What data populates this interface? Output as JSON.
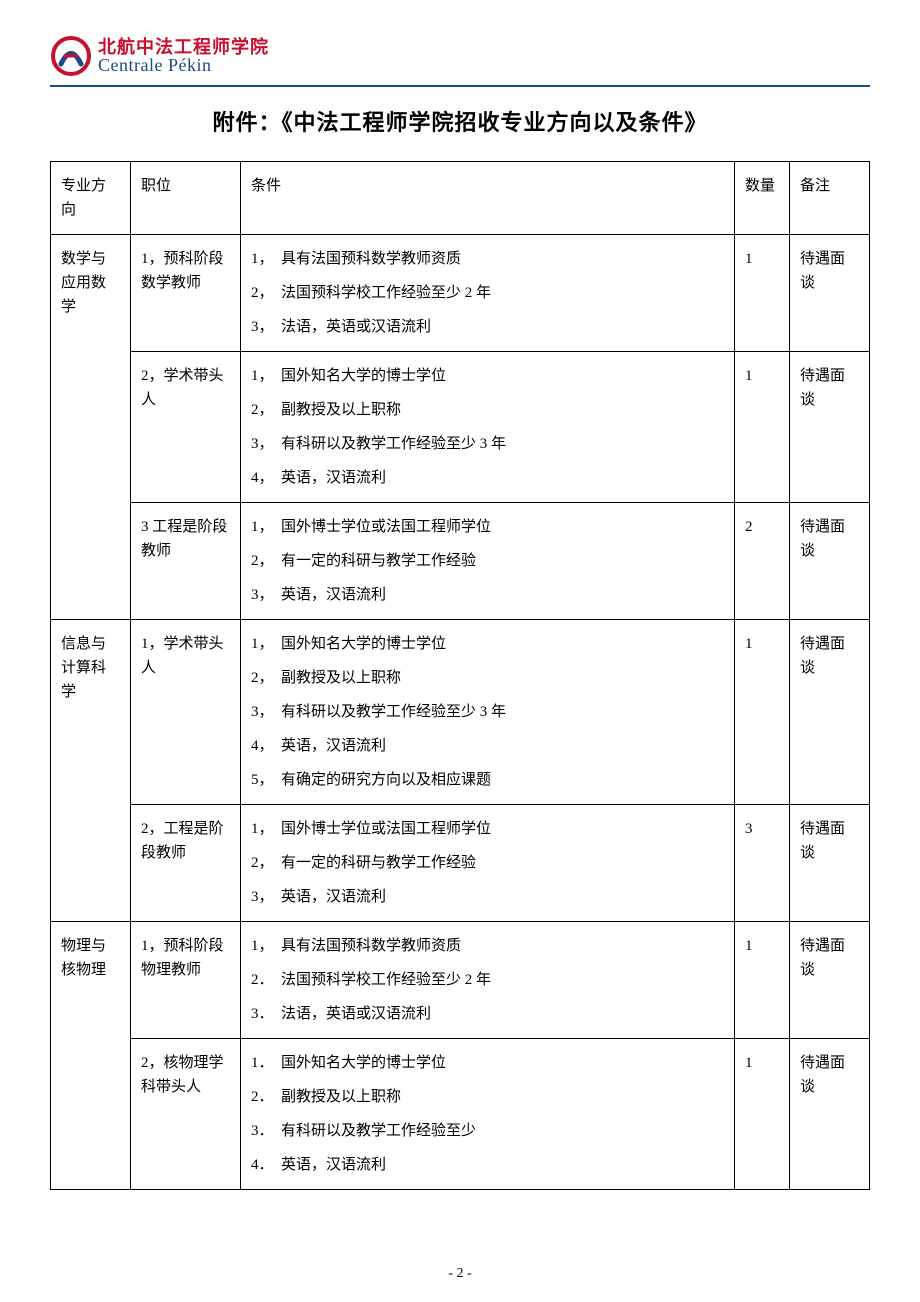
{
  "logo": {
    "cn": "北航中法工程师学院",
    "en": "Centrale Pékin"
  },
  "doc_title": "附件：《中法工程师学院招收专业方向以及条件》",
  "headers": {
    "major": "专业方向",
    "position": "职位",
    "condition": "条件",
    "quantity": "数量",
    "remark": "备注"
  },
  "groups": [
    {
      "major": "数学与应用数学",
      "rows": [
        {
          "position": "1，预科阶段数学教师",
          "conditions": [
            {
              "n": "1，",
              "t": "具有法国预科数学教师资质"
            },
            {
              "n": "2，",
              "t": "法国预科学校工作经验至少 2 年"
            },
            {
              "n": "3，",
              "t": "法语，英语或汉语流利"
            }
          ],
          "qty": "1",
          "remark": "待遇面谈"
        },
        {
          "position": "2，学术带头人",
          "conditions": [
            {
              "n": "1，",
              "t": "国外知名大学的博士学位"
            },
            {
              "n": "2，",
              "t": "副教授及以上职称"
            },
            {
              "n": "3，",
              "t": "有科研以及教学工作经验至少 3 年"
            },
            {
              "n": "4，",
              "t": "英语，汉语流利"
            }
          ],
          "qty": "1",
          "remark": "待遇面谈"
        },
        {
          "position": "3 工程是阶段教师",
          "conditions": [
            {
              "n": "1，",
              "t": "国外博士学位或法国工程师学位"
            },
            {
              "n": "2，",
              "t": "有一定的科研与教学工作经验"
            },
            {
              "n": "3，",
              "t": "英语，汉语流利"
            }
          ],
          "qty": "2",
          "remark": "待遇面谈"
        }
      ]
    },
    {
      "major": "信息与计算科学",
      "rows": [
        {
          "position": "1，学术带头人",
          "conditions": [
            {
              "n": "1，",
              "t": "国外知名大学的博士学位"
            },
            {
              "n": "2，",
              "t": "副教授及以上职称"
            },
            {
              "n": "3，",
              "t": "有科研以及教学工作经验至少 3 年"
            },
            {
              "n": "4，",
              "t": "英语，汉语流利"
            },
            {
              "n": "5，",
              "t": "有确定的研究方向以及相应课题"
            }
          ],
          "qty": "1",
          "remark": "待遇面谈"
        },
        {
          "position": "2，工程是阶段教师",
          "conditions": [
            {
              "n": "1，",
              "t": "国外博士学位或法国工程师学位"
            },
            {
              "n": "2，",
              "t": "有一定的科研与教学工作经验"
            },
            {
              "n": "3，",
              "t": "英语，汉语流利"
            }
          ],
          "qty": "3",
          "remark": "待遇面谈"
        }
      ]
    },
    {
      "major": "物理与核物理",
      "rows": [
        {
          "position": "1，预科阶段物理教师",
          "conditions": [
            {
              "n": "1，",
              "t": "具有法国预科数学教师资质"
            },
            {
              "n": "2．",
              "t": "法国预科学校工作经验至少 2 年"
            },
            {
              "n": "3．",
              "t": "法语，英语或汉语流利"
            }
          ],
          "qty": "1",
          "remark": "待遇面谈"
        },
        {
          "position": "2，核物理学科带头人",
          "conditions": [
            {
              "n": "1．",
              "t": "国外知名大学的博士学位"
            },
            {
              "n": "2．",
              "t": "副教授及以上职称"
            },
            {
              "n": "3．",
              "t": "有科研以及教学工作经验至少"
            },
            {
              "n": "4．",
              "t": "英语，汉语流利"
            }
          ],
          "qty": "1",
          "remark": "待遇面谈"
        }
      ]
    }
  ],
  "page_number": "- 2 -"
}
